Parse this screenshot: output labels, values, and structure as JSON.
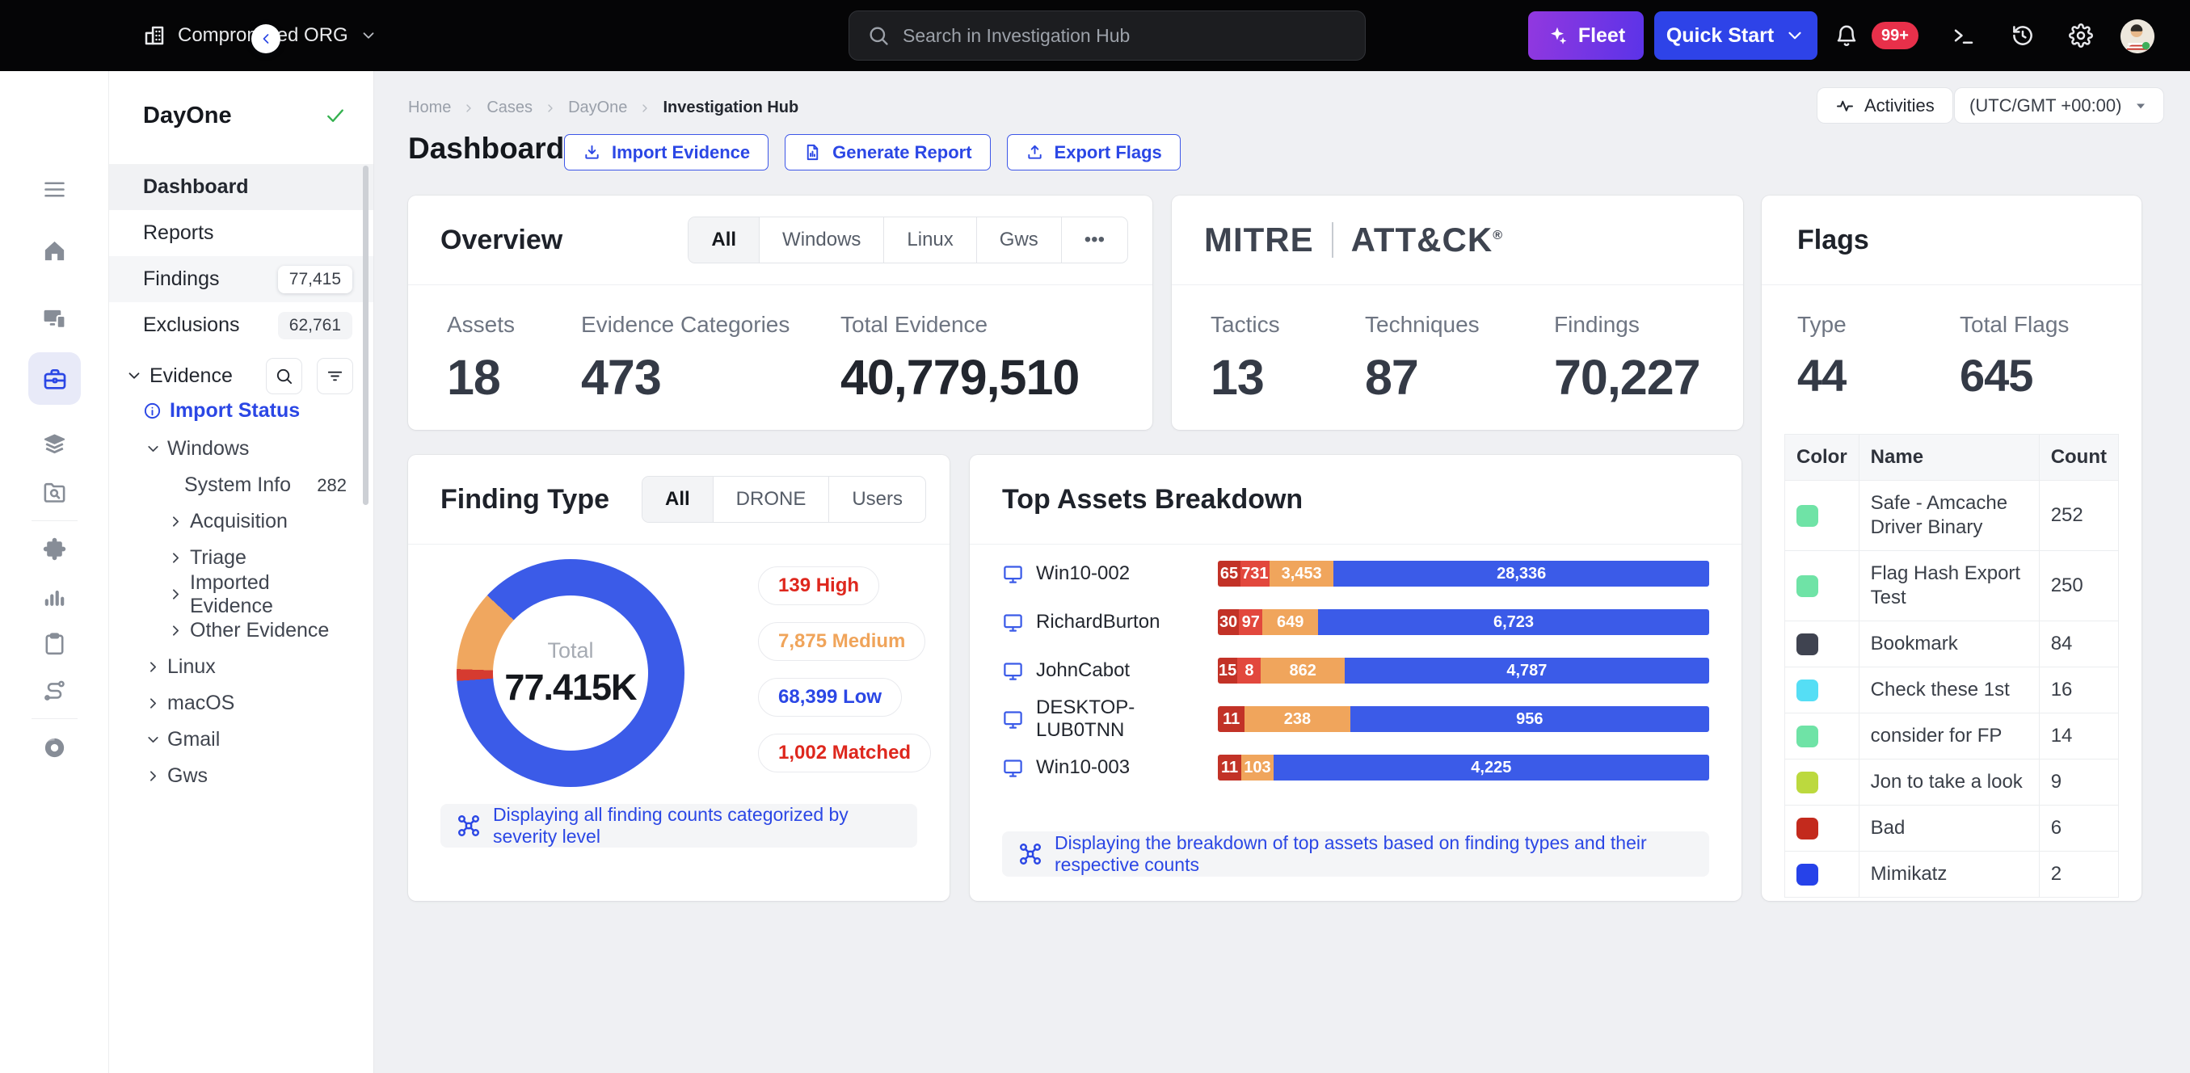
{
  "topbar": {
    "org_name": "Compromised ORG",
    "search_placeholder": "Search in Investigation Hub",
    "fleet_label": "Fleet",
    "quick_start_label": "Quick Start",
    "notification_badge": "99+"
  },
  "sidebar": {
    "case_name": "DayOne",
    "menu": [
      {
        "label": "Dashboard",
        "selected": true
      },
      {
        "label": "Reports"
      },
      {
        "label": "Findings",
        "badge": "77,415",
        "highlight": true
      },
      {
        "label": "Exclusions",
        "badge": "62,761"
      }
    ],
    "evidence_section": {
      "label": "Evidence"
    },
    "tree": [
      {
        "label": "Import Status",
        "type": "link",
        "level": 0
      },
      {
        "label": "Windows",
        "chevron": "down",
        "level": 1
      },
      {
        "label": "System Info",
        "chevron": "none",
        "count": "282",
        "level": 2
      },
      {
        "label": "Acquisition",
        "chevron": "right",
        "level": 2
      },
      {
        "label": "Triage",
        "chevron": "right",
        "level": 2
      },
      {
        "label": "Imported Evidence",
        "chevron": "right",
        "level": 2
      },
      {
        "label": "Other Evidence",
        "chevron": "right",
        "level": 2
      },
      {
        "label": "Linux",
        "chevron": "right",
        "level": 1
      },
      {
        "label": "macOS",
        "chevron": "right",
        "level": 1
      },
      {
        "label": "Gmail",
        "chevron": "down",
        "level": 1
      },
      {
        "label": "Gws",
        "chevron": "right",
        "level": 1
      }
    ]
  },
  "header": {
    "breadcrumb": [
      "Home",
      "Cases",
      "DayOne",
      "Investigation Hub"
    ],
    "title": "Dashboard",
    "actions": [
      "Import Evidence",
      "Generate Report",
      "Export Flags"
    ],
    "activities_label": "Activities",
    "timezone": "(UTC/GMT +00:00)"
  },
  "overview": {
    "title": "Overview",
    "tabs": [
      {
        "label": "All",
        "active": true
      },
      {
        "label": "Windows"
      },
      {
        "label": "Linux"
      },
      {
        "label": "Gws"
      },
      {
        "label": "•••"
      }
    ],
    "stats": [
      {
        "label": "Assets",
        "value": "18"
      },
      {
        "label": "Evidence Categories",
        "value": "473"
      },
      {
        "label": "Total Evidence",
        "value": "40,779,510"
      }
    ]
  },
  "mitre": {
    "logo_left": "MITRE",
    "logo_right": "ATT&CK",
    "reg": "®",
    "stats": [
      {
        "label": "Tactics",
        "value": "13"
      },
      {
        "label": "Techniques",
        "value": "87"
      },
      {
        "label": "Findings",
        "value": "70,227"
      }
    ]
  },
  "flags": {
    "title": "Flags",
    "stats": [
      {
        "label": "Type",
        "value": "44"
      },
      {
        "label": "Total Flags",
        "value": "645"
      }
    ],
    "table": {
      "columns": [
        "Color",
        "Name",
        "Count"
      ],
      "rows": [
        {
          "color": "#6FE3A6",
          "name": "Safe - Amcache Driver Binary",
          "count": "252"
        },
        {
          "color": "#6FE3A6",
          "name": "Flag Hash Export Test",
          "count": "250"
        },
        {
          "color": "#3F4350",
          "name": "Bookmark",
          "count": "84"
        },
        {
          "color": "#55DEF5",
          "name": "Check these 1st",
          "count": "16"
        },
        {
          "color": "#6FE3A6",
          "name": "consider for FP",
          "count": "14"
        },
        {
          "color": "#BCD93E",
          "name": "Jon to take a look",
          "count": "9"
        },
        {
          "color": "#C32A1D",
          "name": "Bad",
          "count": "6"
        },
        {
          "color": "#2642E9",
          "name": "Mimikatz",
          "count": "2"
        }
      ]
    }
  },
  "finding_type": {
    "title": "Finding Type",
    "tabs": [
      {
        "label": "All",
        "active": true
      },
      {
        "label": "DRONE"
      },
      {
        "label": "Users"
      }
    ],
    "donut": {
      "center_label": "Total",
      "center_value": "77.415K",
      "segments": [
        {
          "color": "#3B5BE8",
          "from": 0,
          "to": 266
        },
        {
          "color": "#D63B30",
          "from": 266,
          "to": 272
        },
        {
          "color": "#F0A75F",
          "from": 272,
          "to": 313
        },
        {
          "color": "#3B5BE8",
          "from": 313,
          "to": 360
        }
      ]
    },
    "legend": [
      {
        "label": "139 High",
        "color": "#DE271D"
      },
      {
        "label": "7,875 Medium",
        "color": "#F0A45A"
      },
      {
        "label": "68,399 Low",
        "color": "#2B47E5"
      },
      {
        "label": "1,002 Matched",
        "color": "#DE271D"
      }
    ],
    "footnote": "Displaying all finding counts categorized by severity level"
  },
  "top_assets": {
    "title": "Top Assets Breakdown",
    "rows": [
      {
        "name": "Win10-002",
        "segments": [
          {
            "value": "65",
            "pct": 4.6,
            "color": "#C23227"
          },
          {
            "value": "731",
            "pct": 5.9,
            "color": "#E2483D"
          },
          {
            "value": "3,453",
            "pct": 13.1,
            "color": "#F0A55C"
          },
          {
            "value": "28,336",
            "pct": 76.4,
            "color": "#3B5BE8"
          }
        ]
      },
      {
        "name": "RichardBurton",
        "segments": [
          {
            "value": "30",
            "pct": 4.3,
            "color": "#C23227"
          },
          {
            "value": "97",
            "pct": 4.8,
            "color": "#E2483D"
          },
          {
            "value": "649",
            "pct": 11.3,
            "color": "#F0A55C"
          },
          {
            "value": "6,723",
            "pct": 79.6,
            "color": "#3B5BE8"
          }
        ]
      },
      {
        "name": "JohnCabot",
        "segments": [
          {
            "value": "15",
            "pct": 4.0,
            "color": "#C23227"
          },
          {
            "value": "8",
            "pct": 4.8,
            "color": "#E2483D"
          },
          {
            "value": "862",
            "pct": 17.0,
            "color": "#F0A55C"
          },
          {
            "value": "4,787",
            "pct": 74.2,
            "color": "#3B5BE8"
          }
        ]
      },
      {
        "name": "DESKTOP-LUB0TNN",
        "segments": [
          {
            "value": "11",
            "pct": 5.5,
            "color": "#C23227"
          },
          {
            "value": "238",
            "pct": 21.4,
            "color": "#F0A55C"
          },
          {
            "value": "956",
            "pct": 73.1,
            "color": "#3B5BE8"
          }
        ]
      },
      {
        "name": "Win10-003",
        "segments": [
          {
            "value": "11",
            "pct": 4.8,
            "color": "#C23227"
          },
          {
            "value": "103",
            "pct": 6.5,
            "color": "#F0A55C"
          },
          {
            "value": "4,225",
            "pct": 88.7,
            "color": "#3B5BE8"
          }
        ]
      }
    ],
    "footnote": "Displaying the breakdown of top assets based on finding types and their respective counts"
  },
  "chart_data": [
    {
      "type": "pie",
      "title": "Finding Type",
      "labels": [
        "Low",
        "Medium",
        "Matched",
        "High"
      ],
      "values": [
        68399,
        7875,
        1002,
        139
      ],
      "total_label": "Total",
      "total_value": "77.415K"
    },
    {
      "type": "bar",
      "title": "Top Assets Breakdown",
      "categories": [
        "Win10-002",
        "RichardBurton",
        "JohnCabot",
        "DESKTOP-LUB0TNN",
        "Win10-003"
      ],
      "series": [
        {
          "name": "High",
          "values": [
            65,
            30,
            15,
            11,
            11
          ]
        },
        {
          "name": "Matched",
          "values": [
            731,
            97,
            8,
            0,
            0
          ]
        },
        {
          "name": "Medium",
          "values": [
            3453,
            649,
            862,
            238,
            103
          ]
        },
        {
          "name": "Low",
          "values": [
            28336,
            6723,
            4787,
            956,
            4225
          ]
        }
      ]
    }
  ]
}
